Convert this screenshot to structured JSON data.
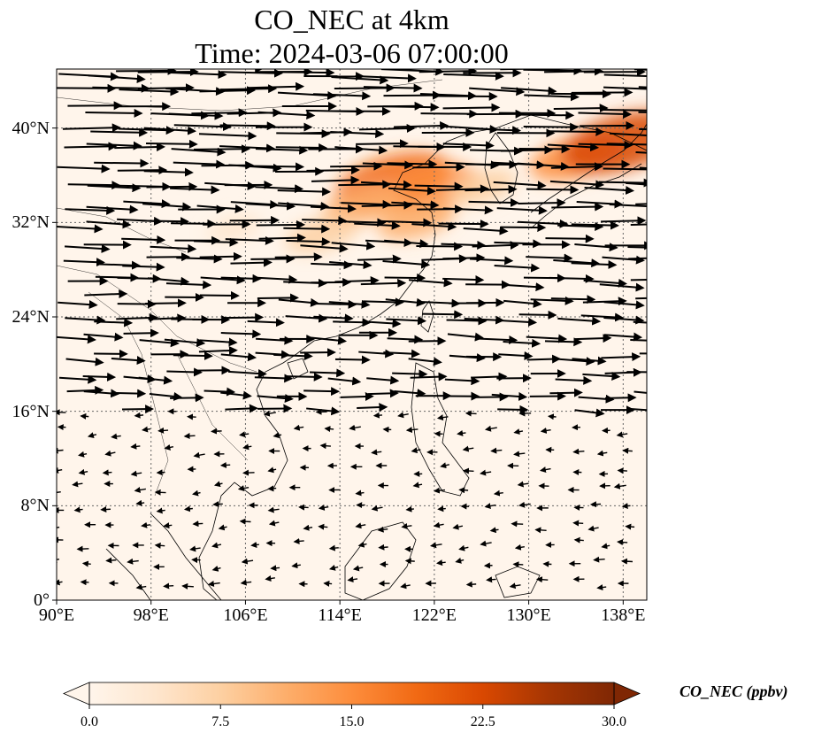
{
  "title": {
    "line1": "CO_NEC at 4km",
    "line2": "Time: 2024-03-06 07:00:00"
  },
  "map": {
    "extent": {
      "lon": [
        90,
        140
      ],
      "lat": [
        0,
        45
      ]
    },
    "lon_ticks": [
      90,
      98,
      106,
      114,
      122,
      130,
      138
    ],
    "lat_ticks": [
      0,
      8,
      16,
      24,
      32,
      40
    ],
    "lon_tick_labels": [
      "90°E",
      "98°E",
      "106°E",
      "114°E",
      "122°E",
      "130°E",
      "138°E"
    ],
    "lat_tick_labels": [
      "0°",
      "8°N",
      "16°N",
      "24°N",
      "32°N",
      "40°N"
    ],
    "gridlines": "dotted",
    "wind_vectors": true
  },
  "colorbar": {
    "label": "CO_NEC (ppbv)",
    "ticks": [
      "0.0",
      "7.5",
      "15.0",
      "22.5",
      "30.0"
    ],
    "min": 0,
    "max": 30,
    "colors": [
      "#fff5eb",
      "#fee6ce",
      "#fdd0a2",
      "#fdae6b",
      "#fd8d3c",
      "#f16913",
      "#d94801",
      "#a63603",
      "#7f2704"
    ],
    "extend": "both"
  },
  "plumes": [
    {
      "lon": 118.5,
      "lat": 35.5,
      "value": 20
    },
    {
      "lon": 121.5,
      "lat": 34.8,
      "value": 16
    },
    {
      "lon": 116.0,
      "lat": 33.5,
      "value": 11
    },
    {
      "lon": 112.5,
      "lat": 31.0,
      "value": 9
    },
    {
      "lon": 120.5,
      "lat": 32.2,
      "value": 10
    },
    {
      "lon": 126.0,
      "lat": 35.0,
      "value": 8
    },
    {
      "lon": 134.0,
      "lat": 37.5,
      "value": 14
    },
    {
      "lon": 138.0,
      "lat": 38.8,
      "value": 22
    },
    {
      "lon": 105.0,
      "lat": 31.5,
      "value": 4
    }
  ]
}
